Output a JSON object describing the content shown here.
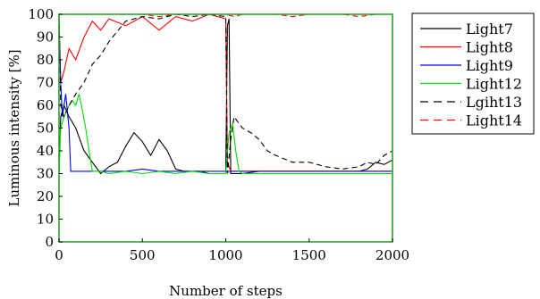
{
  "chart_data": {
    "type": "line",
    "xlabel": "Number of steps",
    "ylabel": "Luminous intensity [%]",
    "xlim": [
      0,
      2000
    ],
    "ylim": [
      0,
      100
    ],
    "xticks": [
      "0",
      "500",
      "1000",
      "1500",
      "2000"
    ],
    "yticks": [
      "0",
      "10",
      "20",
      "30",
      "40",
      "50",
      "60",
      "70",
      "80",
      "90",
      "100"
    ],
    "grid": false,
    "legend_position": "outside-right",
    "series": [
      {
        "name": "Light7",
        "color": "#000000",
        "dash": "solid",
        "x": [
          0,
          10,
          30,
          60,
          100,
          150,
          200,
          250,
          300,
          350,
          400,
          450,
          500,
          550,
          600,
          650,
          700,
          750,
          800,
          850,
          900,
          950,
          1000,
          1010,
          1020,
          1030,
          1050,
          1100,
          1200,
          1300,
          1400,
          1500,
          1600,
          1700,
          1800,
          1850,
          1900,
          1950,
          2000
        ],
        "values": [
          30,
          55,
          60,
          55,
          50,
          40,
          35,
          30,
          33,
          35,
          42,
          48,
          44,
          38,
          45,
          40,
          32,
          31,
          31,
          31,
          30,
          30,
          30,
          95,
          98,
          30,
          30,
          30,
          31,
          31,
          31,
          31,
          31,
          31,
          31,
          32,
          35,
          34,
          36
        ]
      },
      {
        "name": "Light8",
        "color": "#ff0000",
        "dash": "solid",
        "x": [
          0,
          10,
          30,
          60,
          100,
          150,
          200,
          250,
          300,
          400,
          500,
          600,
          700,
          800,
          900,
          1000,
          1010,
          1030,
          1050,
          1100,
          1200,
          1400,
          1600,
          1800,
          2000
        ],
        "values": [
          99,
          70,
          75,
          85,
          80,
          90,
          97,
          93,
          98,
          95,
          99,
          93,
          99,
          97,
          100,
          98,
          35,
          31,
          31,
          31,
          31,
          31,
          31,
          31,
          31
        ]
      },
      {
        "name": "Light9",
        "color": "#0000ff",
        "dash": "solid",
        "x": [
          0,
          10,
          20,
          40,
          60,
          70,
          80,
          100,
          150,
          200,
          300,
          400,
          500,
          600,
          700,
          800,
          900,
          1000,
          1100,
          1500,
          2000
        ],
        "values": [
          95,
          70,
          55,
          65,
          50,
          31,
          31,
          31,
          31,
          31,
          31,
          31,
          32,
          31,
          31,
          31,
          31,
          31,
          31,
          31,
          31
        ]
      },
      {
        "name": "Light12",
        "color": "#00dd00",
        "dash": "solid",
        "x": [
          0,
          10,
          30,
          60,
          80,
          100,
          120,
          140,
          160,
          180,
          200,
          250,
          300,
          400,
          500,
          600,
          700,
          800,
          900,
          1000,
          1020,
          1040,
          1060,
          1080,
          1100,
          1200,
          1300,
          1400,
          1500,
          1600,
          1800,
          2000
        ],
        "values": [
          30,
          50,
          55,
          60,
          62,
          60,
          65,
          58,
          50,
          40,
          31,
          31,
          30,
          31,
          30,
          31,
          30,
          31,
          30,
          30,
          48,
          52,
          40,
          31,
          30,
          30,
          30,
          30,
          30,
          30,
          30,
          30
        ]
      },
      {
        "name": "Lgiht13",
        "color": "#000000",
        "dash": "dashed",
        "x": [
          0,
          10,
          30,
          60,
          100,
          150,
          200,
          250,
          300,
          400,
          500,
          600,
          700,
          800,
          900,
          1000,
          1010,
          1030,
          1050,
          1100,
          1150,
          1200,
          1250,
          1300,
          1400,
          1500,
          1600,
          1700,
          1800,
          1850,
          1900,
          1950,
          2000
        ],
        "values": [
          100,
          60,
          55,
          60,
          65,
          70,
          78,
          82,
          88,
          97,
          99,
          98,
          100,
          99,
          100,
          99,
          30,
          45,
          55,
          50,
          48,
          45,
          40,
          38,
          35,
          35,
          33,
          32,
          33,
          35,
          34,
          38,
          40
        ]
      },
      {
        "name": "Light14",
        "color": "#ff0000",
        "dash": "dashed",
        "x": [
          0,
          100,
          200,
          300,
          400,
          500,
          600,
          700,
          800,
          900,
          1000,
          1050,
          1100,
          1200,
          1300,
          1400,
          1500,
          1600,
          1700,
          1800,
          1900,
          2000
        ],
        "values": [
          100,
          100,
          100,
          100,
          100,
          100,
          99,
          100,
          100,
          100,
          100,
          99,
          100,
          100,
          100,
          99,
          100,
          100,
          100,
          99,
          100,
          100
        ]
      }
    ]
  }
}
